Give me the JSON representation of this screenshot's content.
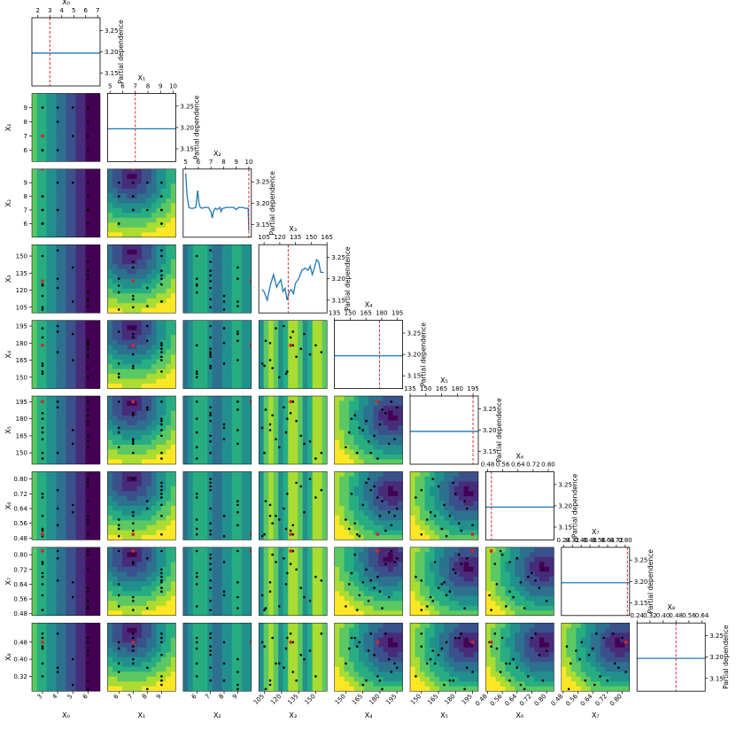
{
  "chart_data": {
    "type": "scatter",
    "title": "",
    "dims": [
      {
        "label": "X₀",
        "range": [
          1.5,
          7.2
        ],
        "ticks": [
          2,
          3,
          4,
          5,
          6,
          7
        ],
        "ticklabels": [
          "2",
          "3",
          "4",
          "5",
          "6",
          "7"
        ],
        "best": 3,
        "kind": "flat"
      },
      {
        "label": "X₁",
        "range": [
          4.8,
          10.2
        ],
        "ticks": [
          5,
          6,
          7,
          8,
          9,
          10
        ],
        "ticklabels": [
          "5",
          "6",
          "7",
          "8",
          "9",
          "10"
        ],
        "best": 7,
        "kind": "flat"
      },
      {
        "label": "X₂",
        "range": [
          4.8,
          10.2
        ],
        "ticks": [
          5,
          6,
          7,
          8,
          9,
          10
        ],
        "ticklabels": [
          "5",
          "6",
          "7",
          "8",
          "9",
          "10"
        ],
        "best": 10,
        "kind": "step"
      },
      {
        "label": "X₃",
        "range": [
          100,
          165
        ],
        "ticks": [
          105,
          120,
          135,
          150,
          165
        ],
        "ticklabels": [
          "105",
          "120",
          "135",
          "150",
          "165"
        ],
        "best": 128,
        "kind": "wave"
      },
      {
        "label": "X₄",
        "range": [
          135,
          200
        ],
        "ticks": [
          135,
          150,
          165,
          180,
          195
        ],
        "ticklabels": [
          "135",
          "150",
          "165",
          "180",
          "195"
        ],
        "best": 178,
        "kind": "flat"
      },
      {
        "label": "X₅",
        "range": [
          135,
          200
        ],
        "ticks": [
          135,
          150,
          165,
          180,
          195
        ],
        "ticklabels": [
          "135",
          "150",
          "165",
          "180",
          "195"
        ],
        "best": 195,
        "kind": "flat"
      },
      {
        "label": "X₆",
        "range": [
          0.47,
          0.83
        ],
        "ticks": [
          0.48,
          0.56,
          0.64,
          0.72,
          0.8
        ],
        "ticklabels": [
          "0.48",
          "0.56",
          "0.64",
          "0.72",
          "0.80"
        ],
        "best": 0.5,
        "kind": "flat"
      },
      {
        "label": "X₇",
        "range": [
          0.22,
          0.84
        ],
        "ticks": [
          0.24,
          0.32,
          0.4,
          0.48,
          0.56,
          0.64,
          0.72,
          0.8
        ],
        "ticklabels": [
          "0.24",
          "0.32",
          "0.40",
          "0.48",
          "0.56",
          "0.64",
          "0.72",
          "0.80"
        ],
        "best": 0.82,
        "kind": "flat"
      },
      {
        "label": "X₈",
        "range": [
          0.24,
          0.66
        ],
        "ticks": [
          0.24,
          0.32,
          0.4,
          0.48,
          0.56,
          0.64
        ],
        "ticklabels": [
          "0.24",
          "0.32",
          "0.40",
          "0.48",
          "0.56",
          "0.64"
        ],
        "best": 0.48,
        "kind": "flat"
      }
    ],
    "offdiag_ranges": {
      "X₀": {
        "range": [
          2.3,
          6.8
        ],
        "ticks": [
          3,
          4,
          5,
          6
        ]
      },
      "X₁": {
        "range": [
          5.2,
          10.0
        ],
        "ticks": [
          6,
          7,
          8,
          9
        ]
      },
      "X₂": {
        "range": [
          5.0,
          10.0
        ],
        "ticks": [
          6,
          7,
          8,
          9
        ]
      },
      "X₃": {
        "range": [
          100,
          160
        ],
        "ticks": [
          105,
          120,
          135,
          150
        ]
      },
      "X₄": {
        "range": [
          140,
          200
        ],
        "ticks": [
          150,
          165,
          180,
          195
        ]
      },
      "X₅": {
        "range": [
          140,
          200
        ],
        "ticks": [
          150,
          165,
          180,
          195
        ]
      },
      "X₆": {
        "range": [
          0.47,
          0.84
        ],
        "ticks": [
          0.48,
          0.56,
          0.64,
          0.72,
          0.8
        ]
      },
      "X₇": {
        "range": [
          0.47,
          0.84
        ],
        "ticks": [
          0.48,
          0.56,
          0.64,
          0.72,
          0.8
        ]
      },
      "X₈": {
        "range": [
          0.25,
          0.57
        ],
        "ticks": [
          0.32,
          0.4,
          0.48
        ]
      }
    },
    "ylabel": "Partial dependence",
    "pd_ylim": [
      3.12,
      3.28
    ],
    "pd_ticks": [
      3.15,
      3.2,
      3.25
    ],
    "pd_ticklabels": [
      "3.15",
      "3.20",
      "3.25"
    ],
    "pd_flat_value": 3.197,
    "pd_curves": {
      "X₂": {
        "x": [
          5.0,
          5.1,
          5.25,
          5.4,
          5.6,
          5.8,
          5.95,
          6.05,
          6.15,
          6.3,
          6.5,
          6.8,
          7.0,
          7.1,
          7.2,
          7.35,
          7.5,
          7.7,
          7.8,
          7.9,
          8.0,
          8.2,
          8.5,
          8.8,
          9.0,
          9.2,
          9.5,
          9.7,
          9.85,
          9.95,
          10.0
        ],
        "y": [
          3.27,
          3.22,
          3.19,
          3.188,
          3.188,
          3.19,
          3.23,
          3.2,
          3.19,
          3.188,
          3.19,
          3.19,
          3.18,
          3.165,
          3.18,
          3.188,
          3.185,
          3.19,
          3.18,
          3.188,
          3.188,
          3.19,
          3.19,
          3.19,
          3.185,
          3.19,
          3.19,
          3.188,
          3.188,
          3.188,
          3.135
        ]
      },
      "X₃": {
        "x": [
          103,
          105,
          108,
          111,
          114,
          117,
          119,
          121,
          123,
          125,
          127,
          129,
          131,
          133,
          135,
          138,
          141,
          144,
          147,
          149,
          151,
          153,
          155,
          157,
          159,
          162
        ],
        "y": [
          3.175,
          3.17,
          3.15,
          3.185,
          3.21,
          3.18,
          3.19,
          3.198,
          3.17,
          3.178,
          3.15,
          3.17,
          3.175,
          3.165,
          3.19,
          3.2,
          3.22,
          3.225,
          3.22,
          3.23,
          3.21,
          3.225,
          3.245,
          3.24,
          3.215,
          3.215
        ]
      }
    },
    "samples": {
      "X₀": [
        3,
        6,
        3,
        4,
        6,
        5,
        3,
        6,
        6,
        4,
        3,
        3,
        6,
        5,
        6,
        3,
        6,
        4,
        3,
        6
      ],
      "X₁": [
        7,
        9,
        9,
        6,
        7,
        9,
        7,
        6,
        9,
        8,
        6,
        9,
        7,
        7,
        9,
        6,
        8,
        9,
        7,
        9
      ],
      "X₂": [
        7,
        8,
        6,
        9,
        7,
        9,
        7,
        6,
        7,
        7,
        8,
        6,
        7,
        9,
        7,
        6,
        9,
        7,
        8,
        6
      ],
      "X₃": [
        105,
        110,
        125,
        130,
        145,
        110,
        128,
        118,
        137,
        122,
        103,
        150,
        112,
        140,
        133,
        124,
        106,
        155,
        115,
        130
      ],
      "X₄": [
        160,
        180,
        155,
        190,
        170,
        165,
        185,
        150,
        175,
        195,
        162,
        178,
        158,
        188,
        168,
        153,
        182,
        172,
        193,
        178
      ],
      "X₅": [
        150,
        175,
        180,
        195,
        160,
        170,
        185,
        155,
        165,
        190,
        172,
        145,
        183,
        158,
        178,
        168,
        188,
        150,
        162,
        195
      ],
      "X₆": [
        0.5,
        0.6,
        0.72,
        0.55,
        0.8,
        0.66,
        0.52,
        0.58,
        0.76,
        0.64,
        0.49,
        0.7,
        0.56,
        0.62,
        0.78,
        0.53,
        0.68,
        0.74,
        0.6,
        0.5
      ],
      "X₇": [
        0.5,
        0.6,
        0.7,
        0.82,
        0.55,
        0.65,
        0.75,
        0.52,
        0.62,
        0.78,
        0.58,
        0.68,
        0.8,
        0.57,
        0.72,
        0.64,
        0.51,
        0.66,
        0.76,
        0.82
      ],
      "X₈": [
        0.46,
        0.3,
        0.5,
        0.34,
        0.44,
        0.28,
        0.52,
        0.38,
        0.42,
        0.36,
        0.48,
        0.32,
        0.5,
        0.4,
        0.3,
        0.45,
        0.26,
        0.52,
        0.38,
        0.48
      ]
    },
    "best_color": "#d62728",
    "pd_line_color": "#1f77b4",
    "colormap": [
      "#440154",
      "#472c7a",
      "#3b518b",
      "#2c718e",
      "#21908d",
      "#27ad81",
      "#5cc863",
      "#aadc32",
      "#fde725"
    ]
  }
}
